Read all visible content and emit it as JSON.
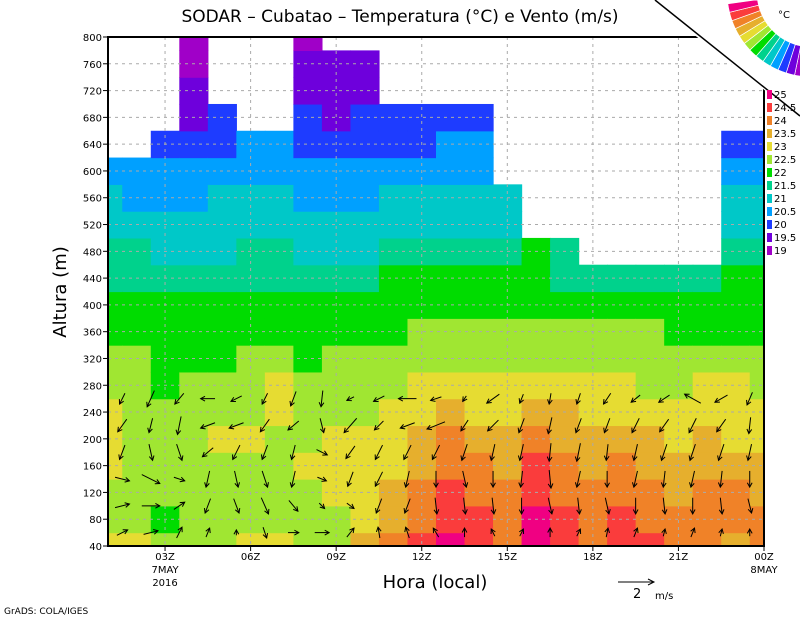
{
  "chart_data": {
    "type": "heatmap",
    "title": "SODAR – Cubatao – Temperatura (°C) e Vento (m/s)",
    "xlabel": "Hora (local)",
    "ylabel": "Altura (m)",
    "x_hours": [
      1,
      2,
      3,
      4,
      5,
      6,
      7,
      8,
      9,
      10,
      11,
      12,
      13,
      14,
      15,
      16,
      17,
      18,
      19,
      20,
      21,
      22,
      23,
      24
    ],
    "xlim": [
      1,
      24
    ],
    "x_ticks": [
      {
        "hour": 3,
        "label": "03Z",
        "sub1": "7MAY",
        "sub2": "2016"
      },
      {
        "hour": 6,
        "label": "06Z"
      },
      {
        "hour": 9,
        "label": "09Z"
      },
      {
        "hour": 12,
        "label": "12Z"
      },
      {
        "hour": 15,
        "label": "15Z"
      },
      {
        "hour": 18,
        "label": "18Z"
      },
      {
        "hour": 21,
        "label": "21Z"
      },
      {
        "hour": 24,
        "label": "00Z",
        "sub1": "8MAY"
      }
    ],
    "heights": [
      40,
      80,
      120,
      160,
      200,
      240,
      280,
      320,
      360,
      400,
      440,
      480,
      520,
      560,
      600,
      640,
      680,
      720,
      760,
      800
    ],
    "ylim": [
      40,
      800
    ],
    "y_ticks": [
      "40",
      "80",
      "120",
      "160",
      "200",
      "240",
      "280",
      "320",
      "360",
      "400",
      "440",
      "480",
      "520",
      "560",
      "600",
      "640",
      "680",
      "720",
      "760",
      "800"
    ],
    "grid": true,
    "z_by_hour": [
      [
        23.2,
        22.7,
        22.7,
        23.2,
        23.2,
        23.2,
        22.7,
        22.7,
        22.2,
        22.2,
        21.7,
        21.7,
        21.2,
        21.2,
        20.7,
        null,
        null,
        null,
        null,
        null
      ],
      [
        23.2,
        22.7,
        22.7,
        22.7,
        22.7,
        22.7,
        22.7,
        22.7,
        22.2,
        22.2,
        21.7,
        21.7,
        21.2,
        20.7,
        20.7,
        null,
        null,
        null,
        null,
        null
      ],
      [
        22.7,
        22.2,
        22.7,
        22.7,
        22.7,
        22.7,
        22.2,
        22.2,
        22.2,
        22.2,
        21.7,
        21.2,
        21.2,
        20.7,
        20.7,
        20.2,
        null,
        null,
        null,
        null
      ],
      [
        22.7,
        22.7,
        22.7,
        22.7,
        22.7,
        22.7,
        22.7,
        22.2,
        22.2,
        22.2,
        21.7,
        21.2,
        21.2,
        20.7,
        20.7,
        20.2,
        19.7,
        19.7,
        19.2,
        19.2
      ],
      [
        22.7,
        22.7,
        22.7,
        22.7,
        23.2,
        22.7,
        22.7,
        22.2,
        22.2,
        22.2,
        21.7,
        21.2,
        21.2,
        21.2,
        20.7,
        20.2,
        20.2,
        null,
        null,
        null
      ],
      [
        23.2,
        22.7,
        22.7,
        22.7,
        23.2,
        22.7,
        22.7,
        22.7,
        22.2,
        22.2,
        21.7,
        21.7,
        21.2,
        21.2,
        20.7,
        20.7,
        null,
        null,
        null,
        null
      ],
      [
        23.2,
        22.7,
        22.7,
        22.7,
        22.7,
        23.2,
        23.2,
        22.7,
        22.2,
        22.2,
        21.7,
        21.7,
        21.2,
        21.2,
        20.7,
        20.7,
        null,
        null,
        null,
        null
      ],
      [
        22.7,
        22.7,
        22.7,
        23.2,
        22.7,
        22.7,
        22.7,
        22.2,
        22.2,
        22.2,
        21.7,
        21.2,
        21.2,
        20.7,
        20.7,
        20.2,
        20.2,
        19.7,
        19.7,
        19.2
      ],
      [
        22.7,
        22.7,
        23.2,
        23.2,
        23.2,
        22.7,
        22.7,
        22.7,
        22.2,
        22.2,
        21.7,
        21.2,
        21.2,
        20.7,
        20.7,
        20.2,
        19.7,
        19.7,
        19.7,
        null
      ],
      [
        23.7,
        23.2,
        23.2,
        23.2,
        23.2,
        22.7,
        22.7,
        22.7,
        22.2,
        22.2,
        21.7,
        21.2,
        21.2,
        20.7,
        20.7,
        20.2,
        20.2,
        19.7,
        19.7,
        null
      ],
      [
        24.2,
        23.7,
        23.7,
        23.2,
        23.2,
        23.2,
        22.7,
        22.7,
        22.2,
        22.2,
        22.2,
        21.7,
        21.2,
        21.2,
        20.7,
        20.2,
        20.2,
        null,
        null,
        null
      ],
      [
        24.7,
        24.2,
        24.2,
        23.7,
        23.7,
        23.2,
        23.2,
        22.7,
        22.7,
        22.2,
        22.2,
        21.7,
        21.2,
        21.2,
        20.7,
        20.2,
        20.2,
        null,
        null,
        null
      ],
      [
        25.2,
        24.7,
        24.7,
        24.2,
        24.2,
        23.7,
        23.2,
        22.7,
        22.7,
        22.2,
        22.2,
        21.7,
        21.2,
        21.2,
        20.7,
        20.7,
        20.2,
        null,
        null,
        null
      ],
      [
        24.7,
        24.7,
        24.2,
        24.2,
        23.7,
        23.2,
        23.2,
        22.7,
        22.7,
        22.2,
        22.2,
        21.7,
        21.2,
        21.2,
        20.7,
        20.7,
        20.2,
        null,
        null,
        null
      ],
      [
        24.2,
        24.2,
        24.2,
        23.7,
        23.7,
        23.2,
        23.2,
        22.7,
        22.7,
        22.2,
        22.2,
        21.7,
        21.2,
        21.2,
        null,
        null,
        null,
        null,
        null,
        null
      ],
      [
        25.2,
        25.2,
        24.7,
        24.7,
        24.2,
        23.7,
        23.2,
        22.7,
        22.7,
        22.2,
        22.2,
        22.2,
        null,
        null,
        null,
        null,
        null,
        null,
        null,
        null
      ],
      [
        24.7,
        24.7,
        24.2,
        24.2,
        23.7,
        23.7,
        23.2,
        22.7,
        22.7,
        22.2,
        21.7,
        21.7,
        null,
        null,
        null,
        null,
        null,
        null,
        null,
        null
      ],
      [
        24.2,
        24.2,
        24.2,
        23.7,
        23.7,
        23.2,
        23.2,
        22.7,
        22.7,
        22.2,
        21.7,
        null,
        null,
        null,
        null,
        null,
        null,
        null,
        null,
        null
      ],
      [
        24.7,
        24.7,
        24.2,
        24.2,
        23.7,
        23.2,
        23.2,
        22.7,
        22.7,
        22.2,
        21.7,
        null,
        null,
        null,
        null,
        null,
        null,
        null,
        null,
        null
      ],
      [
        24.7,
        24.2,
        24.2,
        23.7,
        23.7,
        23.2,
        22.7,
        22.7,
        22.7,
        22.2,
        21.7,
        null,
        null,
        null,
        null,
        null,
        null,
        null,
        null,
        null
      ],
      [
        24.2,
        24.2,
        23.7,
        23.7,
        23.2,
        23.2,
        22.7,
        22.7,
        22.2,
        22.2,
        21.7,
        null,
        null,
        null,
        null,
        null,
        null,
        null,
        null,
        null
      ],
      [
        24.2,
        24.2,
        24.2,
        23.7,
        23.7,
        23.2,
        23.2,
        22.7,
        22.2,
        22.2,
        21.7,
        null,
        null,
        null,
        null,
        null,
        null,
        null,
        null,
        null
      ],
      [
        23.7,
        24.2,
        24.2,
        23.7,
        23.2,
        23.2,
        23.2,
        22.7,
        22.2,
        22.2,
        22.2,
        21.7,
        21.2,
        21.2,
        20.7,
        20.2,
        null,
        null,
        null,
        null
      ],
      [
        24.2,
        24.2,
        23.7,
        23.7,
        23.2,
        23.2,
        22.7,
        22.7,
        22.2,
        22.2,
        22.2,
        21.7,
        21.2,
        21.2,
        20.7,
        20.2,
        null,
        null,
        null,
        null
      ]
    ],
    "legend": {
      "unit": "°C",
      "levels": [
        "19",
        "19.5",
        "20",
        "20.5",
        "21",
        "21.5",
        "22",
        "22.5",
        "23",
        "23.5",
        "24",
        "24.5",
        "25"
      ],
      "colors": [
        "#a000c8",
        "#6e00dc",
        "#1e3cff",
        "#00a0ff",
        "#00c8c8",
        "#00d28c",
        "#00dc00",
        "#a0e632",
        "#e6dc32",
        "#e6af2d",
        "#f08228",
        "#fa3c3c",
        "#f00082"
      ]
    },
    "wind": {
      "heights": [
        60,
        100,
        140,
        180,
        220,
        260
      ],
      "u_by_hour": [
        [
          0.6,
          0.8,
          0.8,
          -0.3,
          -0.5,
          -0.3
        ],
        [
          0.8,
          1.0,
          1.0,
          0.2,
          -0.2,
          -0.4
        ],
        [
          0.3,
          0.6,
          0.6,
          0.3,
          -0.2,
          -0.5
        ],
        [
          0.2,
          -0.3,
          -0.2,
          -0.6,
          -0.8,
          -0.8
        ],
        [
          0.0,
          0.3,
          0.2,
          -0.4,
          -0.8,
          -0.6
        ],
        [
          0.2,
          0.4,
          0.3,
          -0.3,
          -0.5,
          -0.3
        ],
        [
          0.6,
          0.5,
          -0.2,
          -0.2,
          -0.6,
          -0.3
        ],
        [
          0.8,
          0.3,
          0.5,
          0.6,
          0.2,
          -0.1
        ],
        [
          0.4,
          0.4,
          -0.3,
          -0.5,
          -0.7,
          -0.4
        ],
        [
          -0.1,
          -0.3,
          -0.4,
          -0.4,
          -0.5,
          -0.6
        ],
        [
          -0.2,
          -0.3,
          -0.2,
          -0.4,
          -0.8,
          -1.0
        ],
        [
          -0.3,
          0.1,
          0.0,
          -0.4,
          -1.0,
          -0.6
        ],
        [
          0.0,
          0.1,
          0.2,
          -0.3,
          -0.4,
          -0.2
        ],
        [
          -0.2,
          0.1,
          0.0,
          -0.2,
          -0.6,
          -0.7
        ],
        [
          0.2,
          0.0,
          -0.1,
          -0.2,
          -0.3,
          -0.2
        ],
        [
          0.0,
          0.2,
          0.1,
          -0.1,
          -0.2,
          -0.1
        ],
        [
          0.2,
          0.1,
          -0.2,
          -0.2,
          -0.3,
          -0.2
        ],
        [
          0.1,
          0.2,
          0.0,
          -0.1,
          -0.3,
          -0.4
        ],
        [
          0.2,
          0.0,
          -0.2,
          -0.2,
          -0.4,
          -0.5
        ],
        [
          0.1,
          0.1,
          -0.1,
          -0.3,
          -0.5,
          -0.6
        ],
        [
          0.2,
          0.0,
          -0.2,
          -0.3,
          -0.4,
          -0.9
        ],
        [
          0.1,
          0.1,
          -0.1,
          -0.3,
          -0.5,
          -0.7
        ],
        [
          0.0,
          0.2,
          0.0,
          -0.2,
          -0.1,
          -0.3
        ],
        [
          0.1,
          0.0,
          -0.1,
          -0.3,
          -0.4,
          -0.4
        ]
      ],
      "v_by_hour": [
        [
          0.3,
          0.2,
          -0.2,
          -0.8,
          -0.7,
          -0.6
        ],
        [
          0.2,
          0.0,
          -0.5,
          -0.9,
          -0.8,
          -0.9
        ],
        [
          0.6,
          0.4,
          -0.2,
          -0.9,
          -1.0,
          -0.6
        ],
        [
          0.5,
          -0.8,
          -0.9,
          -0.5,
          -0.3,
          0.0
        ],
        [
          0.3,
          -0.8,
          -0.9,
          -0.8,
          -0.3,
          -0.3
        ],
        [
          -0.6,
          -0.9,
          -0.9,
          -0.8,
          -0.7,
          -0.6
        ],
        [
          0.0,
          -0.6,
          -0.9,
          -0.8,
          -0.5,
          -0.8
        ],
        [
          0.0,
          -0.3,
          -0.2,
          -0.3,
          -0.8,
          -0.9
        ],
        [
          0.5,
          -0.3,
          -0.8,
          -0.7,
          -0.8,
          -0.2
        ],
        [
          0.6,
          -0.8,
          -0.8,
          -0.8,
          -0.5,
          -0.3
        ],
        [
          0.6,
          -0.8,
          -0.9,
          -0.8,
          -0.3,
          0.0
        ],
        [
          0.5,
          -0.9,
          -0.9,
          -0.8,
          -0.4,
          -0.2
        ],
        [
          0.5,
          -0.9,
          -0.9,
          -0.9,
          -0.6,
          -0.3
        ],
        [
          0.4,
          -0.9,
          -0.9,
          -0.9,
          -0.6,
          -0.5
        ],
        [
          0.4,
          -0.9,
          -0.9,
          -0.9,
          -0.8,
          -0.5
        ],
        [
          0.5,
          -0.9,
          -1.0,
          -1.0,
          -0.9,
          -0.6
        ],
        [
          0.4,
          -0.9,
          -0.9,
          -1.0,
          -0.8,
          -0.6
        ],
        [
          0.5,
          -0.9,
          -0.9,
          -0.9,
          -0.8,
          -0.6
        ],
        [
          0.5,
          -0.9,
          -0.9,
          -0.9,
          -0.8,
          -0.4
        ],
        [
          0.4,
          -0.9,
          -0.9,
          -0.9,
          -0.7,
          -0.4
        ],
        [
          0.5,
          -0.9,
          -0.9,
          -0.9,
          -0.8,
          0.5
        ],
        [
          0.4,
          -0.9,
          -0.9,
          -0.9,
          -0.7,
          -0.4
        ],
        [
          0.4,
          -0.8,
          -0.9,
          -0.9,
          -0.9,
          -0.7
        ],
        [
          0.4,
          -0.9,
          -0.9,
          -0.8,
          -0.7,
          -0.6
        ]
      ],
      "reference": {
        "value": 2,
        "label": "2",
        "unit": "m/s"
      }
    }
  },
  "footer": {
    "credit": "GrADS: COLA/IGES"
  }
}
